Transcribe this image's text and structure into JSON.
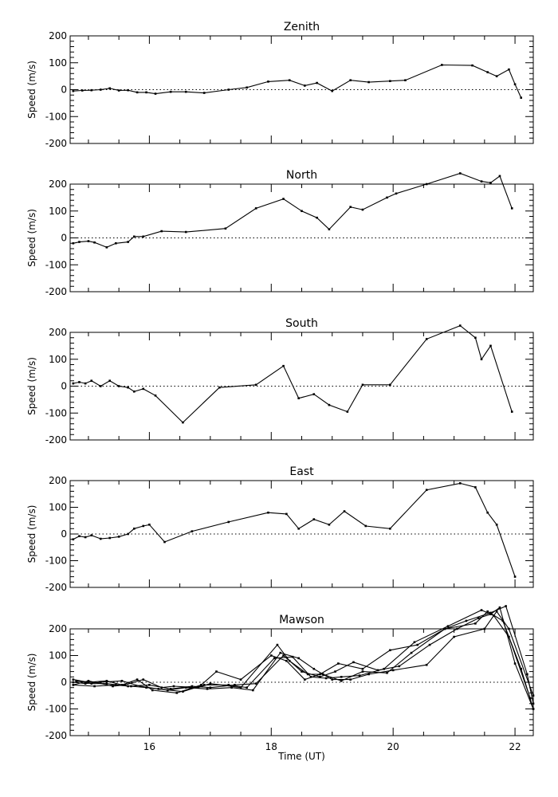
{
  "chart_data": [
    {
      "type": "line",
      "title": "Zenith",
      "ylabel": "Speed (m/s)",
      "xlim": [
        14.7,
        22.3
      ],
      "ylim": [
        -200,
        200
      ],
      "yticks": [
        "200",
        "100",
        "0",
        "-100",
        "-200"
      ],
      "series": [
        {
          "x": [
            14.75,
            14.9,
            15.05,
            15.2,
            15.35,
            15.5,
            15.65,
            15.8,
            15.95,
            16.1,
            16.35,
            16.6,
            16.9,
            17.3,
            17.6,
            17.95,
            18.3,
            18.55,
            18.75,
            19.0,
            19.3,
            19.6,
            19.95,
            20.2,
            20.8,
            21.3,
            21.55,
            21.7,
            21.9,
            22.0,
            22.1
          ],
          "y": [
            -5,
            -3,
            -2,
            0,
            5,
            -3,
            -2,
            -10,
            -10,
            -15,
            -8,
            -8,
            -12,
            0,
            8,
            30,
            35,
            15,
            25,
            -5,
            35,
            28,
            32,
            35,
            92,
            90,
            65,
            50,
            75,
            20,
            -30
          ]
        }
      ]
    },
    {
      "type": "line",
      "title": "North",
      "ylabel": "Speed (m/s)",
      "xlim": [
        14.7,
        22.3
      ],
      "ylim": [
        -200,
        200
      ],
      "yticks": [
        "200",
        "100",
        "0",
        "-100",
        "-200"
      ],
      "series": [
        {
          "x": [
            14.75,
            14.85,
            15.0,
            15.1,
            15.3,
            15.45,
            15.65,
            15.75,
            15.9,
            16.2,
            16.6,
            17.25,
            17.75,
            18.2,
            18.5,
            18.75,
            18.95,
            19.3,
            19.5,
            19.9,
            20.05,
            20.55,
            21.1,
            21.45,
            21.6,
            21.75,
            21.95
          ],
          "y": [
            -20,
            -15,
            -12,
            -17,
            -35,
            -20,
            -15,
            5,
            5,
            25,
            22,
            35,
            110,
            145,
            100,
            75,
            32,
            115,
            105,
            150,
            165,
            200,
            240,
            210,
            205,
            230,
            110
          ]
        }
      ]
    },
    {
      "type": "line",
      "title": "South",
      "ylabel": "Speed (m/s)",
      "xlim": [
        14.7,
        22.3
      ],
      "ylim": [
        -200,
        200
      ],
      "yticks": [
        "200",
        "100",
        "0",
        "-100",
        "-200"
      ],
      "series": [
        {
          "x": [
            14.75,
            14.85,
            14.95,
            15.05,
            15.2,
            15.35,
            15.5,
            15.65,
            15.75,
            15.9,
            16.1,
            16.55,
            17.15,
            17.75,
            18.2,
            18.45,
            18.7,
            18.95,
            19.25,
            19.5,
            19.95,
            20.55,
            21.1,
            21.35,
            21.45,
            21.6,
            21.95
          ],
          "y": [
            10,
            15,
            10,
            20,
            0,
            20,
            0,
            -5,
            -20,
            -10,
            -35,
            -135,
            -5,
            5,
            75,
            -45,
            -30,
            -70,
            -95,
            5,
            5,
            175,
            225,
            180,
            100,
            150,
            -95
          ]
        }
      ]
    },
    {
      "type": "line",
      "title": "East",
      "ylabel": "Speed (m/s)",
      "xlim": [
        14.7,
        22.3
      ],
      "ylim": [
        -200,
        200
      ],
      "yticks": [
        "200",
        "100",
        "0",
        "-100",
        "-200"
      ],
      "series": [
        {
          "x": [
            14.75,
            14.85,
            14.95,
            15.05,
            15.2,
            15.35,
            15.5,
            15.65,
            15.75,
            15.9,
            16.0,
            16.25,
            16.7,
            17.3,
            17.95,
            18.25,
            18.45,
            18.7,
            18.95,
            19.2,
            19.55,
            19.95,
            20.55,
            21.1,
            21.35,
            21.55,
            21.7,
            22.0
          ],
          "y": [
            -20,
            -8,
            -12,
            -5,
            -18,
            -15,
            -10,
            0,
            20,
            30,
            35,
            -30,
            10,
            45,
            80,
            75,
            20,
            55,
            35,
            85,
            30,
            20,
            165,
            190,
            175,
            80,
            35,
            -160
          ]
        }
      ]
    },
    {
      "type": "line",
      "title": "Mawson",
      "xlabel": "Time (UT)",
      "ylabel": "Speed (m/s)",
      "xlim": [
        14.7,
        22.3
      ],
      "ylim": [
        -200,
        200
      ],
      "xticks": [
        "16",
        "18",
        "20",
        "22"
      ],
      "yticks": [
        "200",
        "100",
        "0",
        "-100",
        "-200"
      ],
      "series": [
        {
          "x": [
            14.75,
            15.0,
            15.3,
            15.55,
            15.8,
            16.05,
            16.45,
            16.85,
            17.1,
            17.5,
            18.0,
            18.25,
            18.55,
            18.8,
            19.1,
            19.5,
            19.95,
            20.4,
            20.85,
            21.35,
            21.55,
            21.8,
            22.1,
            22.3
          ],
          "y": [
            10,
            0,
            5,
            -10,
            10,
            -30,
            -40,
            -10,
            40,
            10,
            100,
            80,
            10,
            30,
            70,
            50,
            120,
            140,
            200,
            220,
            265,
            230,
            50,
            -100
          ]
        },
        {
          "x": [
            14.75,
            15.0,
            15.4,
            15.6,
            15.9,
            16.2,
            16.4,
            16.8,
            17.0,
            17.5,
            18.1,
            18.3,
            18.6,
            18.85,
            19.15,
            19.5,
            19.9,
            20.3,
            20.85,
            21.2,
            21.6,
            21.85,
            22.2,
            22.3
          ],
          "y": [
            -10,
            5,
            -15,
            -10,
            10,
            -20,
            -15,
            -20,
            -5,
            -20,
            140,
            80,
            30,
            30,
            5,
            40,
            35,
            110,
            200,
            230,
            260,
            285,
            30,
            -80
          ]
        },
        {
          "x": [
            14.75,
            14.95,
            15.2,
            15.55,
            15.85,
            16.15,
            16.55,
            16.9,
            17.3,
            17.6,
            18.05,
            18.35,
            18.65,
            18.9,
            19.15,
            19.45,
            19.85,
            20.35,
            20.9,
            21.45,
            21.65,
            21.9,
            22.25
          ],
          "y": [
            0,
            -5,
            0,
            5,
            -15,
            -25,
            -35,
            -10,
            -10,
            -20,
            90,
            95,
            20,
            15,
            20,
            25,
            50,
            150,
            210,
            270,
            250,
            170,
            -60
          ]
        },
        {
          "x": [
            14.75,
            15.1,
            15.45,
            15.7,
            15.95,
            16.3,
            16.6,
            16.95,
            17.35,
            17.7,
            18.15,
            18.45,
            18.7,
            19.0,
            19.3,
            19.6,
            20.0,
            20.55,
            21.0,
            21.5,
            21.7,
            21.9,
            22.3
          ],
          "y": [
            -10,
            -15,
            -10,
            -15,
            -20,
            -30,
            -20,
            -25,
            -20,
            -30,
            110,
            90,
            50,
            10,
            10,
            30,
            45,
            65,
            170,
            200,
            265,
            200,
            -50
          ]
        },
        {
          "x": [
            14.8,
            15.05,
            15.3,
            15.65,
            16.0,
            16.35,
            16.7,
            17.0,
            17.4,
            17.75,
            18.2,
            18.5,
            18.8,
            19.05,
            19.35,
            19.75,
            20.1,
            20.6,
            21.05,
            21.4,
            21.6,
            21.75,
            22.0,
            22.3
          ],
          "y": [
            5,
            -5,
            -5,
            -15,
            -10,
            -25,
            -15,
            -20,
            -10,
            -5,
            100,
            40,
            20,
            40,
            75,
            45,
            60,
            140,
            200,
            240,
            255,
            280,
            70,
            -100
          ]
        }
      ]
    }
  ]
}
